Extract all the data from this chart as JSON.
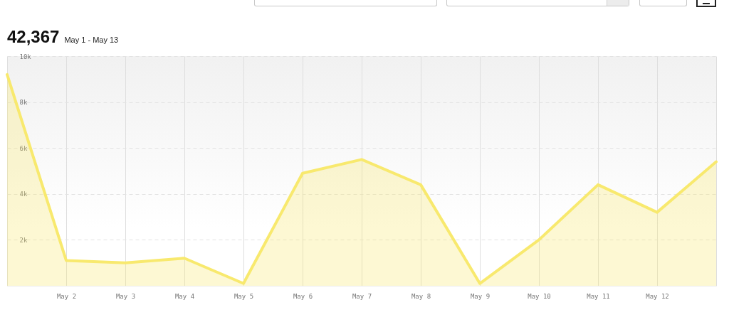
{
  "chart_data": {
    "type": "area",
    "title": "42,367",
    "subtitle": "May 1 - May 13",
    "categories": [
      null,
      "May 2",
      "May 3",
      "May 4",
      "May 5",
      "May 6",
      "May 7",
      "May 8",
      "May 9",
      "May 10",
      "May 11",
      "May 12",
      null
    ],
    "series": [
      {
        "color": "#f8e96e",
        "values": [
          9200,
          1100,
          1000,
          1200,
          100,
          4900,
          5500,
          4400,
          100,
          2000,
          4400,
          3200,
          5400
        ]
      }
    ],
    "ylim": [
      0,
      10000
    ],
    "yticks": [
      {
        "value": 2000,
        "label": "2k"
      },
      {
        "value": 4000,
        "label": "4k"
      },
      {
        "value": 6000,
        "label": "6k"
      },
      {
        "value": 8000,
        "label": "8k"
      },
      {
        "value": 10000,
        "label": "10k"
      }
    ],
    "grid": true
  }
}
